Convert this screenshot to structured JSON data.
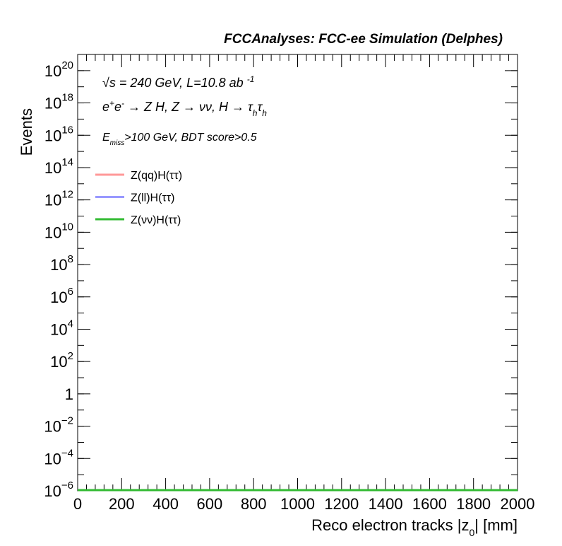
{
  "chart_data": {
    "type": "histogram",
    "title": "FCCAnalyses: FCC-ee Simulation (Delphes)",
    "annotations": [
      [
        {
          "text": "√s = 240 GeV, L=10.8 ab "
        },
        {
          "text": "-1",
          "shift": "super"
        }
      ],
      [
        {
          "text": "e"
        },
        {
          "text": "+",
          "shift": "super"
        },
        {
          "text": "e"
        },
        {
          "text": "-",
          "shift": "super"
        },
        {
          "text": " → Z H, Z  → νν, H → τ"
        },
        {
          "text": "h",
          "shift": "sub"
        },
        {
          "text": "τ"
        },
        {
          "text": "h",
          "shift": "sub"
        }
      ],
      [
        {
          "text": "E"
        },
        {
          "text": "miss",
          "shift": "sub"
        },
        {
          "text": ">100 GeV, BDT score>0.5"
        }
      ]
    ],
    "x_label": [
      {
        "text": "Reco electron tracks |z"
      },
      {
        "text": "0",
        "shift": "sub"
      },
      {
        "text": "| [mm]"
      }
    ],
    "y_label": "Events",
    "bins": [
      0,
      2000
    ],
    "series": [
      {
        "name": "Z(qq)H(ττ)",
        "color": "#ff9999",
        "values": [
          0
        ]
      },
      {
        "name": "Z(ll)H(ττ)",
        "color": "#9999ff",
        "values": [
          0
        ]
      },
      {
        "name": "Z(νν)H(ττ)",
        "color": "#33bb33",
        "values": [
          0
        ]
      }
    ],
    "xlim": [
      0,
      2000
    ],
    "xticks": [
      0,
      200,
      400,
      600,
      800,
      1000,
      1200,
      1400,
      1600,
      1800,
      2000
    ],
    "ylim": [
      1e-06,
      1e+21
    ],
    "log_y": true,
    "yticks": [
      {
        "value": 1e-06,
        "label": "10",
        "exponent": "−6"
      },
      {
        "value": 0.0001,
        "label": "10",
        "exponent": "−4"
      },
      {
        "value": 0.01,
        "label": "10",
        "exponent": "−2"
      },
      1,
      {
        "value": 100,
        "label": "10",
        "exponent": "2"
      },
      {
        "value": 10000.0,
        "label": "10",
        "exponent": "4"
      },
      {
        "value": 1000000.0,
        "label": "10",
        "exponent": "6"
      },
      {
        "value": 100000000.0,
        "label": "10",
        "exponent": "8"
      },
      {
        "value": 10000000000.0,
        "label": "10",
        "exponent": "10"
      },
      {
        "value": 1000000000000.0,
        "label": "10",
        "exponent": "12"
      },
      {
        "value": 100000000000000.0,
        "label": "10",
        "exponent": "14"
      },
      {
        "value": 1e+16,
        "label": "10",
        "exponent": "16"
      },
      {
        "value": 1e+18,
        "label": "10",
        "exponent": "18"
      },
      {
        "value": 1e+20,
        "label": "10",
        "exponent": "20"
      }
    ],
    "legend": "upper left"
  }
}
